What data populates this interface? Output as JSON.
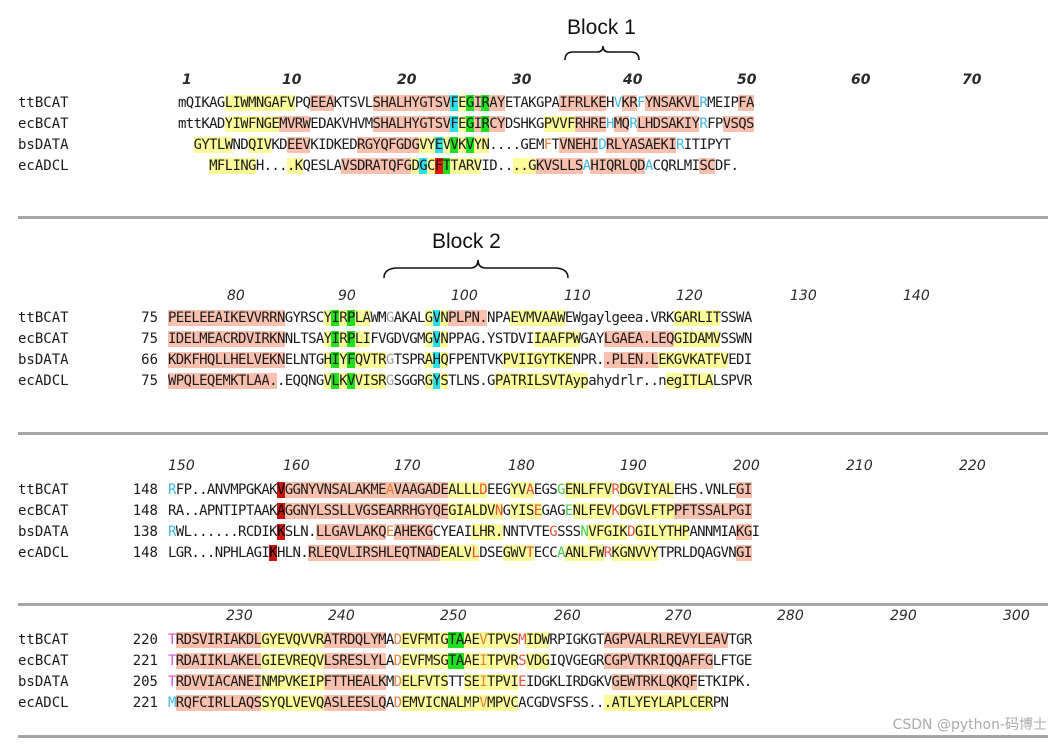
{
  "block_labels": {
    "block1": "Block 1",
    "block2": "Block 2"
  },
  "rows": [
    {
      "ruler": [
        "1",
        "10",
        "20",
        "30",
        "40",
        "50",
        "60",
        "70"
      ],
      "ruler_style": "bold",
      "names": [
        "ttBCAT",
        "ecBCAT",
        "bsDATA",
        "ecADCL"
      ],
      "starts": [
        "",
        "",
        "",
        ""
      ],
      "seqs": [
        "mQIKAGLIWMNGAFVPQEEAKTSVLSHALHYGTSVFEGIRAYETAKGPAIFRLKEHVKRFYNSAKVLRMEIPFA",
        "mttKADYIWFNGEMVRWEDAKVHVMSHALHYGTSVFEGIRCYDSHKGPVVFRHREHMQRLHDSAKIYRFPVSQS",
        "  GYTLWNDQIVKDEEVKIDKEDRGYQFGDGVYEVVKVYN....GEMFTVNEHIDRLYASAEKIRITIPYT",
        "    MFLINGH....KQESLAVSDRATQFGDGCFTTARVID....GKVSLLSAHIQRLQDACQRLMISCDF."
      ]
    },
    {
      "ruler": [
        "80",
        "90",
        "100",
        "110",
        "120",
        "130",
        "140"
      ],
      "ruler_style": "normal",
      "names": [
        "ttBCAT",
        "ecBCAT",
        "bsDATA",
        "ecADCL"
      ],
      "starts": [
        "75",
        "75",
        "66",
        "75"
      ],
      "seqs": [
        "PEELEEAIKEVVRRNGYRSCYIRPLAWMGAKALGVNPLPN.NPAEVMVAAWEWgaylgeea.VRKGARLITSSWA",
        "IDELMEACRDVIRKNNLTSAYIRPLIFVGDVGMGVNPPAG.YSTDVIIAAFPWGAYLGAEA.LEQGIDAMVSSWN",
        "KDKFHQLLHELVEKNELNTGHIYFQVTRGTSPRAHQFPENTVKPVIIGYTKENPR..PLEN.LEKGVKATFVEDI",
        "WPQLEQEMKTLAA..EQQNGVLKVVISRGSGGRGYSTLNS.GPATRILSVTAypahydrlr..negITLALSPVR"
      ]
    },
    {
      "ruler": [
        "150",
        "160",
        "170",
        "180",
        "190",
        "200",
        "210",
        "220"
      ],
      "ruler_style": "normal",
      "names": [
        "ttBCAT",
        "ecBCAT",
        "bsDATA",
        "ecADCL"
      ],
      "starts": [
        "148",
        "148",
        "138",
        "148"
      ],
      "seqs": [
        "RFP..ANVMPGKAKVGGNYVNSALAKMEAVAAGADEALLLDEEGYVAEGSGENLFFVRDGVIYALEHS.VNLEGI",
        "RA..APNTIPTAAKAGGNYLSSLLVGSEARRHGYQEGIALDVNGYISEGAGENLFEVKDGVLFTPPFTSSALPGI",
        "RWL......RCDIKKSLN.LLGAVLAKQEAHEKGCYEAILHR.NNTVTEGSSSNVFGIKDGILYTHPANNMIAKGI",
        "LGR...NPHLAGIKHLN.RLEQVLIRSHLEQTNADEALVLDSEGWVTECCAANLFWRKGNVVYTPRLDQAGVNGI"
      ]
    },
    {
      "ruler": [
        "230",
        "240",
        "250",
        "260",
        "270",
        "280",
        "290",
        "300"
      ],
      "ruler_style": "normal",
      "names": [
        "ttBCAT",
        "ecBCAT",
        "bsDATA",
        "ecADCL"
      ],
      "starts": [
        "220",
        "221",
        "205",
        "221"
      ],
      "seqs": [
        "TRDSVIRIAKDLGYEVQVVRATRDQLYMADEVFMTGTAAEVTPVSMIDWRPIGKGTAGPVALRLREVYLEAVTGR",
        "TRDAIIKLAKELGIEVREQVLSRESLYLADEVFMSGTAAEITPVRSVDGIQVGEGRCGPVTKRIQQAFFGLFTGE",
        "TRDVVIACANEINMPVKEIPFTTHEALKMDELFVTSTTSEITPVIEIDGKLIRDGKVGEWTRKLQKQFETKIPK.",
        "MRQFCIRLLAQSSYQLVEVQASLEESLQADEMVICNALMPVMPVCACGDVSFSS...ATLYEYLAPLCERPN"
      ]
    }
  ],
  "watermark": "CSDN @python-码博士"
}
